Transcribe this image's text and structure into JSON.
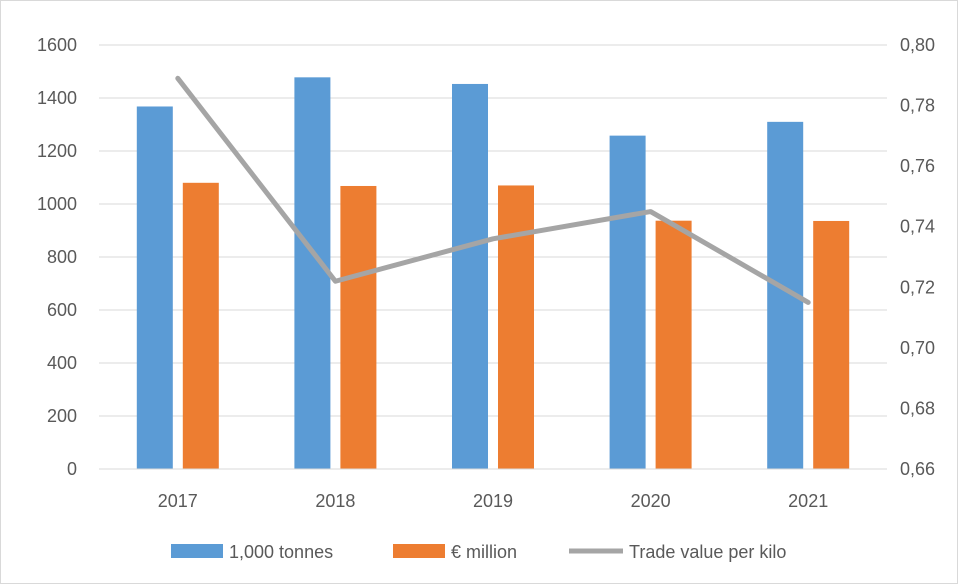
{
  "chart_data": {
    "type": "bar",
    "categories": [
      "2017",
      "2018",
      "2019",
      "2020",
      "2021"
    ],
    "series": [
      {
        "name": "1,000 tonnes",
        "kind": "bar",
        "axis": "left",
        "color": "#5b9bd5",
        "values": [
          1368,
          1478,
          1453,
          1258,
          1310
        ]
      },
      {
        "name": "€ million",
        "kind": "bar",
        "axis": "left",
        "color": "#ed7d31",
        "values": [
          1080,
          1068,
          1070,
          937,
          936
        ]
      },
      {
        "name": "Trade value per kilo",
        "kind": "line",
        "axis": "right",
        "color": "#a5a5a5",
        "values": [
          0.789,
          0.722,
          0.736,
          0.745,
          0.715
        ]
      }
    ],
    "y_left": {
      "min": 0,
      "max": 1600,
      "ticks": [
        "0",
        "200",
        "400",
        "600",
        "800",
        "1000",
        "1200",
        "1400",
        "1600"
      ]
    },
    "y_right": {
      "min": 0.66,
      "max": 0.8,
      "ticks": [
        "0,66",
        "0,68",
        "0,70",
        "0,72",
        "0,74",
        "0,76",
        "0,78",
        "0,80"
      ]
    },
    "grid": true,
    "legend_position": "bottom"
  }
}
